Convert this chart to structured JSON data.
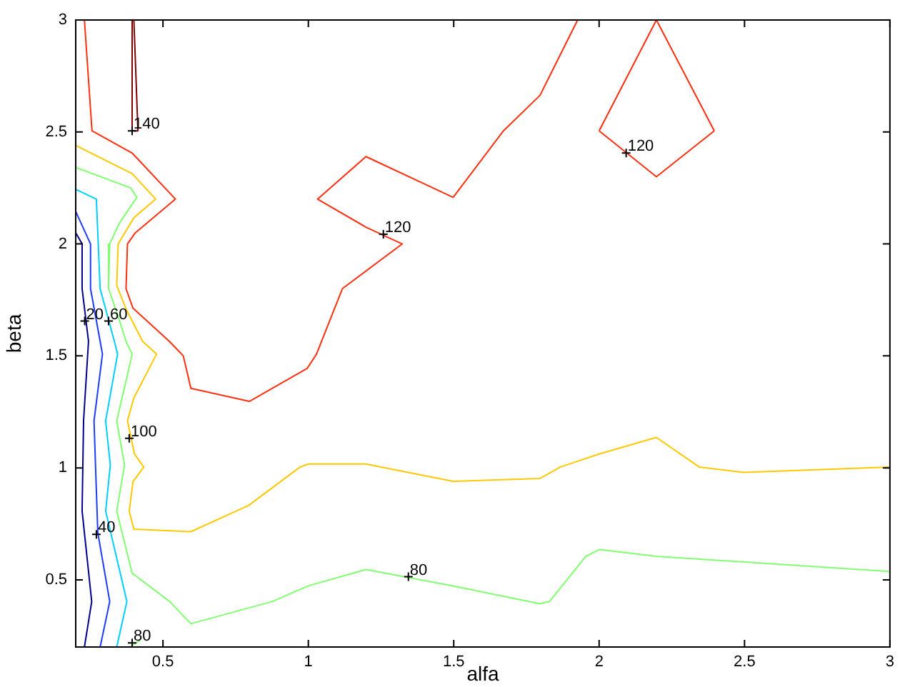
{
  "chart_data": {
    "type": "line",
    "xlabel": "alfa",
    "ylabel": "beta",
    "xlim": [
      0.2,
      3
    ],
    "ylim": [
      0.2,
      3
    ],
    "xticks": [
      0.5,
      1,
      1.5,
      2,
      2.5,
      3
    ],
    "yticks": [
      0.5,
      1,
      1.5,
      2,
      2.5,
      3
    ],
    "series": [
      {
        "color": "#00008f",
        "x": [
          0.2,
          0.222,
          0.222,
          0.244,
          0.227,
          0.222,
          0.255,
          0.23
        ],
        "values": [
          2.05,
          2.0,
          1.8,
          1.565,
          1.21,
          0.807,
          0.403,
          0.2
        ]
      },
      {
        "color": "#1e3cff",
        "x": [
          0.2,
          0.251,
          0.251,
          0.284,
          0.292,
          0.263,
          0.268,
          0.276,
          0.317,
          0.284
        ],
        "values": [
          2.145,
          2.0,
          1.8,
          1.565,
          1.508,
          1.21,
          1.013,
          0.71,
          0.403,
          0.2
        ]
      },
      {
        "color": "#00cfff",
        "x": [
          0.2,
          0.271,
          0.284,
          0.333,
          0.344,
          0.303,
          0.319,
          0.303,
          0.376,
          0.341
        ],
        "values": [
          2.244,
          2.2,
          1.8,
          1.565,
          1.508,
          1.21,
          1.013,
          0.807,
          0.403,
          0.2
        ]
      },
      {
        "color": "#80ff70",
        "x": [
          0.2,
          0.389,
          0.41,
          0.349,
          0.317,
          0.313,
          0.346,
          0.373,
          0.394,
          0.368,
          0.341,
          0.368,
          0.341,
          0.394,
          0.523,
          0.596,
          0.875,
          1.0,
          1.198,
          1.498,
          1.797,
          1.829,
          1.954,
          2.0,
          2.197,
          3.0
        ],
        "values": [
          2.342,
          2.25,
          2.208,
          2.09,
          2.0,
          1.8,
          1.677,
          1.565,
          1.508,
          1.359,
          1.21,
          1.013,
          0.807,
          0.53,
          0.403,
          0.304,
          0.403,
          0.473,
          0.546,
          0.473,
          0.393,
          0.403,
          0.605,
          0.635,
          0.605,
          0.537
        ]
      },
      {
        "color": "#80ff70",
        "x": [
          0.385,
          0.421
        ],
        "values": [
          0.2,
          0.23
        ]
      },
      {
        "color": "#ffc800",
        "x": [
          0.2,
          0.394,
          0.475,
          0.4,
          0.346,
          0.341,
          0.373,
          0.43,
          0.478,
          0.4,
          0.378,
          0.402,
          0.434,
          0.397,
          0.384,
          0.4,
          0.596,
          0.794,
          0.972,
          1.0,
          1.198,
          1.498,
          1.797,
          1.867,
          2.0,
          2.197,
          2.344,
          2.496,
          3.0
        ],
        "values": [
          2.44,
          2.314,
          2.2,
          2.117,
          2.0,
          1.815,
          1.71,
          1.565,
          1.508,
          1.312,
          1.21,
          1.062,
          1.004,
          0.938,
          0.807,
          0.726,
          0.715,
          0.832,
          1.004,
          1.017,
          1.017,
          0.94,
          0.953,
          1.004,
          1.062,
          1.136,
          1.004,
          0.98,
          1.004
        ]
      },
      {
        "color": "#ff3010",
        "x": [
          0.23,
          0.256,
          0.394,
          0.543,
          0.405,
          0.378,
          0.373,
          0.397,
          0.522,
          0.57,
          0.596,
          0.797,
          0.996,
          1.028,
          1.117,
          1.323,
          1.198,
          1.032,
          1.198,
          1.498,
          1.671,
          1.797,
          1.926
        ],
        "values": [
          3,
          2.505,
          2.406,
          2.2,
          2.05,
          2.0,
          1.8,
          1.713,
          1.565,
          1.5,
          1.355,
          1.297,
          1.444,
          1.508,
          1.8,
          2.0,
          2.075,
          2.2,
          2.39,
          2.208,
          2.505,
          2.664,
          3
        ]
      },
      {
        "color": "#ff3010",
        "x": [
          2.0,
          2.197,
          2.396
        ],
        "values": [
          2.505,
          3,
          2.505
        ]
      },
      {
        "color": "#ff3010",
        "x": [
          2.0,
          2.197,
          2.396
        ],
        "values": [
          2.505,
          2.3,
          2.505
        ]
      },
      {
        "color": "#800000",
        "x": [
          0.394,
          0.394,
          0.414,
          0.4
        ],
        "values": [
          3,
          2.505,
          2.505,
          3
        ]
      }
    ],
    "annotations": [
      {
        "text": "140",
        "x": 0.394,
        "y": 2.505
      },
      {
        "text": "120",
        "x": 1.258,
        "y": 2.043
      },
      {
        "text": "120",
        "x": 2.093,
        "y": 2.406
      },
      {
        "text": "20",
        "x": 0.231,
        "y": 1.656
      },
      {
        "text": "60",
        "x": 0.313,
        "y": 1.656
      },
      {
        "text": "100",
        "x": 0.384,
        "y": 1.132
      },
      {
        "text": "40",
        "x": 0.271,
        "y": 0.703
      },
      {
        "text": "80",
        "x": 1.344,
        "y": 0.514
      },
      {
        "text": "80",
        "x": 0.394,
        "y": 0.218
      }
    ]
  }
}
